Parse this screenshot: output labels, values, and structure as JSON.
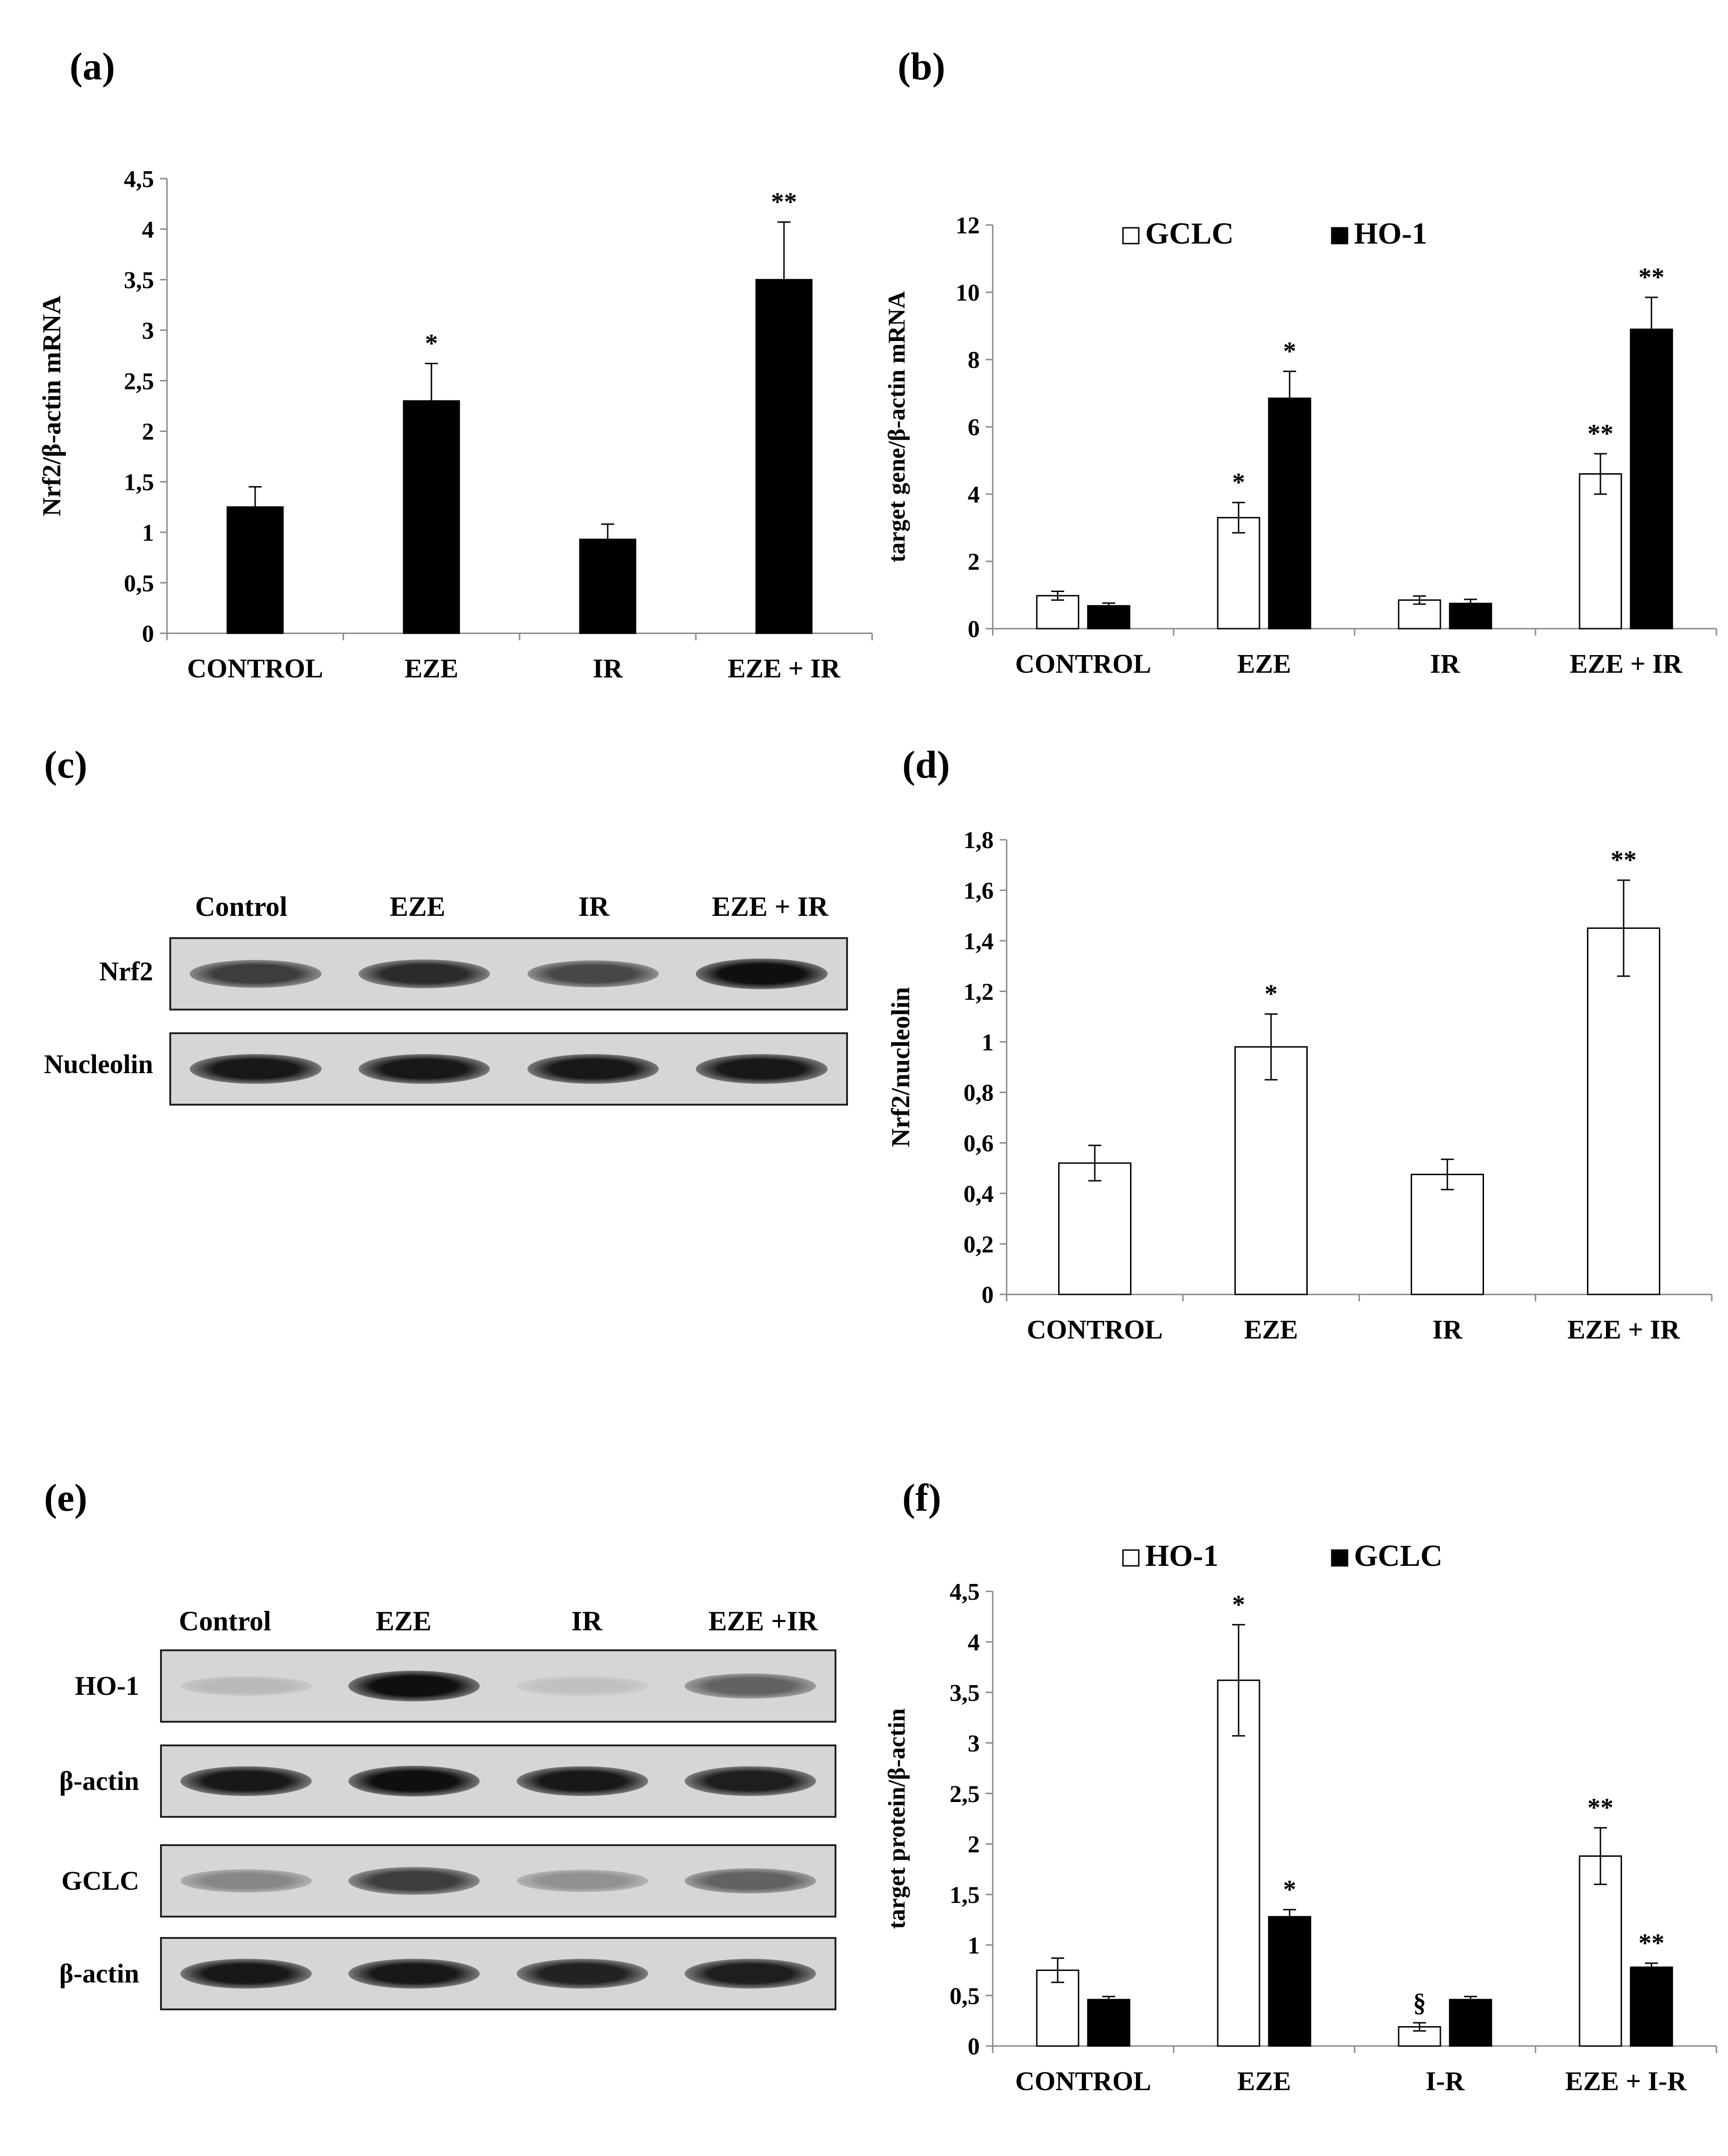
{
  "figure": {
    "panel_labels": [
      "(a)",
      "(b)",
      "(c)",
      "(d)",
      "(e)",
      "(f)"
    ]
  },
  "chart_data": [
    {
      "id": "a",
      "type": "bar",
      "categories": [
        "CONTROL",
        "EZE",
        "IR",
        "EZE + IR"
      ],
      "ylabel": "Nrf2/β-actin mRNA",
      "ylim": [
        0,
        4.5
      ],
      "yticks": [
        "0",
        "0,5",
        "1",
        "1,5",
        "2",
        "2,5",
        "3",
        "3,5",
        "4",
        "4,5"
      ],
      "series": [
        {
          "values": [
            1.25,
            2.3,
            0.93,
            3.5
          ],
          "errors": [
            0.2,
            0.37,
            0.15,
            0.57
          ],
          "color": "#000000",
          "annotations": [
            "",
            "*",
            "",
            "**"
          ]
        }
      ]
    },
    {
      "id": "b",
      "type": "bar",
      "categories": [
        "CONTROL",
        "EZE",
        "IR",
        "EZE + IR"
      ],
      "ylabel": "target gene/β-actin mRNA",
      "ylim": [
        0,
        12
      ],
      "yticks": [
        "0",
        "2",
        "4",
        "6",
        "8",
        "10",
        "12"
      ],
      "legend_position": "top-center",
      "series": [
        {
          "name": "GCLC",
          "values": [
            0.98,
            3.3,
            0.85,
            4.6
          ],
          "errors": [
            0.13,
            0.45,
            0.12,
            0.6
          ],
          "color": "#ffffff",
          "annotations": [
            "",
            "*",
            "",
            "**"
          ]
        },
        {
          "name": "HO-1",
          "values": [
            0.68,
            6.85,
            0.75,
            8.9
          ],
          "errors": [
            0.08,
            0.8,
            0.12,
            0.95
          ],
          "color": "#000000",
          "annotations": [
            "",
            "*",
            "",
            "**"
          ]
        }
      ]
    },
    {
      "id": "d",
      "type": "bar",
      "categories": [
        "CONTROL",
        "EZE",
        "IR",
        "EZE + IR"
      ],
      "ylabel": "Nrf2/nucleolin",
      "ylim": [
        0,
        1.8
      ],
      "yticks": [
        "0",
        "0,2",
        "0,4",
        "0,6",
        "0,8",
        "1",
        "1,2",
        "1,4",
        "1,6",
        "1,8"
      ],
      "series": [
        {
          "values": [
            0.52,
            0.98,
            0.475,
            1.45
          ],
          "errors": [
            0.07,
            0.13,
            0.06,
            0.19
          ],
          "color": "#ffffff",
          "annotations": [
            "",
            "*",
            "",
            "**"
          ]
        }
      ]
    },
    {
      "id": "f",
      "type": "bar",
      "categories": [
        "CONTROL",
        "EZE",
        "I-R",
        "EZE + I-R"
      ],
      "ylabel": "target protein/β-actin",
      "ylim": [
        0,
        4.5
      ],
      "yticks": [
        "0",
        "0,5",
        "1",
        "1,5",
        "2",
        "2,5",
        "3",
        "3,5",
        "4",
        "4,5"
      ],
      "legend_position": "top-center",
      "series": [
        {
          "name": "HO-1",
          "values": [
            0.75,
            3.62,
            0.19,
            1.88
          ],
          "errors": [
            0.12,
            0.55,
            0.04,
            0.28
          ],
          "color": "#ffffff",
          "annotations": [
            "",
            "*",
            "§",
            "**"
          ]
        },
        {
          "name": "GCLC",
          "values": [
            0.46,
            1.28,
            0.46,
            0.78
          ],
          "errors": [
            0.03,
            0.07,
            0.03,
            0.04
          ],
          "color": "#000000",
          "annotations": [
            "",
            "*",
            "",
            "**"
          ]
        }
      ]
    }
  ],
  "blots": {
    "c": {
      "lanes": [
        "Control",
        "EZE",
        "IR",
        "EZE + IR"
      ],
      "rows": [
        {
          "label": "Nrf2",
          "intensity": [
            0.75,
            0.85,
            0.7,
            1.0
          ]
        },
        {
          "label": "Nucleolin",
          "intensity": [
            0.95,
            0.95,
            0.95,
            0.95
          ]
        }
      ]
    },
    "e": {
      "lanes": [
        "Control",
        "EZE",
        "IR",
        "EZE +IR"
      ],
      "rows": [
        {
          "label": "HO-1",
          "intensity": [
            0.08,
            1.0,
            0.04,
            0.55
          ]
        },
        {
          "label": "β-actin",
          "intensity": [
            0.95,
            1.0,
            0.95,
            0.92
          ]
        },
        {
          "label": "GCLC",
          "intensity": [
            0.35,
            0.75,
            0.3,
            0.55
          ]
        },
        {
          "label": "β-actin",
          "intensity": [
            0.95,
            0.95,
            0.9,
            0.92
          ]
        }
      ]
    }
  }
}
